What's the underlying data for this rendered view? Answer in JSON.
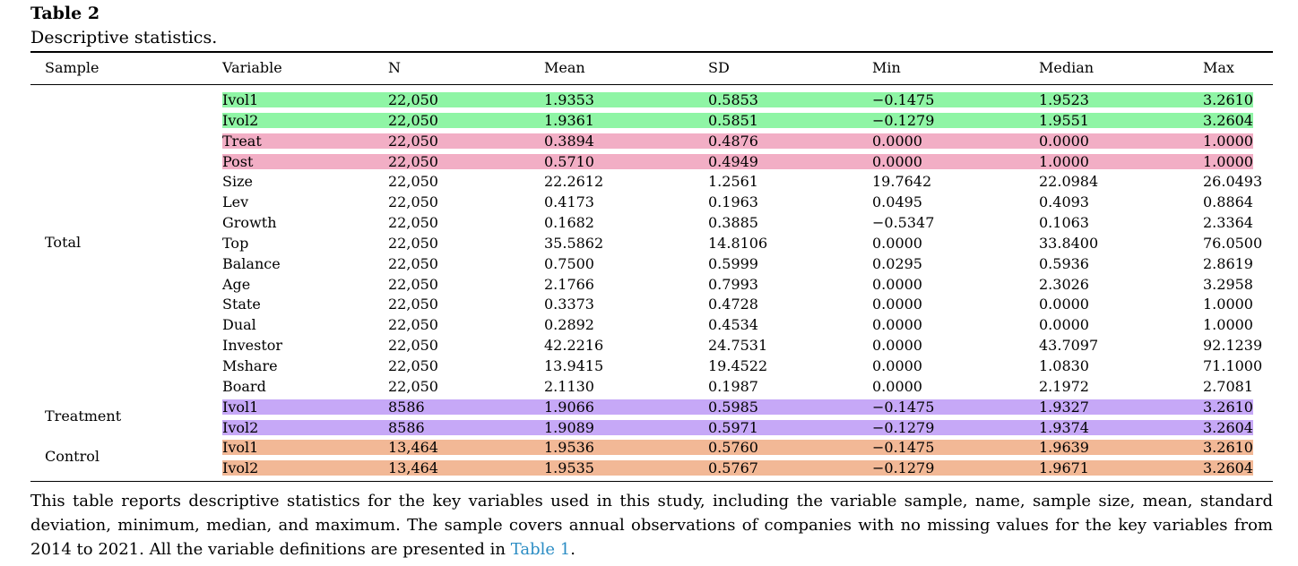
{
  "table": {
    "title": "Table 2",
    "subtitle": "Descriptive statistics.",
    "headers": {
      "sample": "Sample",
      "variable": "Variable",
      "n": "N",
      "mean": "Mean",
      "sd": "SD",
      "min": "Min",
      "median": "Median",
      "max": "Max"
    },
    "groups": {
      "total": "Total",
      "treatment": "Treatment",
      "control": "Control"
    },
    "highlight_colors": {
      "green": "#8ff5a5",
      "pink": "#f2aec5",
      "purple": "#c6a8f7",
      "orange": "#f2b896"
    },
    "rows": [
      {
        "variable": "Ivol1",
        "n": "22,050",
        "mean": "1.9353",
        "sd": "0.5853",
        "min": "−0.1475",
        "median": "1.9523",
        "max": "3.2610",
        "highlight": "green"
      },
      {
        "variable": "Ivol2",
        "n": "22,050",
        "mean": "1.9361",
        "sd": "0.5851",
        "min": "−0.1279",
        "median": "1.9551",
        "max": "3.2604",
        "highlight": "green"
      },
      {
        "variable": "Treat",
        "n": "22,050",
        "mean": "0.3894",
        "sd": "0.4876",
        "min": "0.0000",
        "median": "0.0000",
        "max": "1.0000",
        "highlight": "pink"
      },
      {
        "variable": "Post",
        "n": "22,050",
        "mean": "0.5710",
        "sd": "0.4949",
        "min": "0.0000",
        "median": "1.0000",
        "max": "1.0000",
        "highlight": "pink"
      },
      {
        "variable": "Size",
        "n": "22,050",
        "mean": "22.2612",
        "sd": "1.2561",
        "min": "19.7642",
        "median": "22.0984",
        "max": "26.0493",
        "highlight": ""
      },
      {
        "variable": "Lev",
        "n": "22,050",
        "mean": "0.4173",
        "sd": "0.1963",
        "min": "0.0495",
        "median": "0.4093",
        "max": "0.8864",
        "highlight": ""
      },
      {
        "variable": "Growth",
        "n": "22,050",
        "mean": "0.1682",
        "sd": "0.3885",
        "min": "−0.5347",
        "median": "0.1063",
        "max": "2.3364",
        "highlight": ""
      },
      {
        "variable": "Top",
        "n": "22,050",
        "mean": "35.5862",
        "sd": "14.8106",
        "min": "0.0000",
        "median": "33.8400",
        "max": "76.0500",
        "highlight": ""
      },
      {
        "variable": "Balance",
        "n": "22,050",
        "mean": "0.7500",
        "sd": "0.5999",
        "min": "0.0295",
        "median": "0.5936",
        "max": "2.8619",
        "highlight": ""
      },
      {
        "variable": "Age",
        "n": "22,050",
        "mean": "2.1766",
        "sd": "0.7993",
        "min": "0.0000",
        "median": "2.3026",
        "max": "3.2958",
        "highlight": ""
      },
      {
        "variable": "State",
        "n": "22,050",
        "mean": "0.3373",
        "sd": "0.4728",
        "min": "0.0000",
        "median": "0.0000",
        "max": "1.0000",
        "highlight": ""
      },
      {
        "variable": "Dual",
        "n": "22,050",
        "mean": "0.2892",
        "sd": "0.4534",
        "min": "0.0000",
        "median": "0.0000",
        "max": "1.0000",
        "highlight": ""
      },
      {
        "variable": "Investor",
        "n": "22,050",
        "mean": "42.2216",
        "sd": "24.7531",
        "min": "0.0000",
        "median": "43.7097",
        "max": "92.1239",
        "highlight": ""
      },
      {
        "variable": "Mshare",
        "n": "22,050",
        "mean": "13.9415",
        "sd": "19.4522",
        "min": "0.0000",
        "median": "1.0830",
        "max": "71.1000",
        "highlight": ""
      },
      {
        "variable": "Board",
        "n": "22,050",
        "mean": "2.1130",
        "sd": "0.1987",
        "min": "0.0000",
        "median": "2.1972",
        "max": "2.7081",
        "highlight": ""
      },
      {
        "variable": "Ivol1",
        "n": "8586",
        "mean": "1.9066",
        "sd": "0.5985",
        "min": "−0.1475",
        "median": "1.9327",
        "max": "3.2610",
        "highlight": "purple"
      },
      {
        "variable": "Ivol2",
        "n": "8586",
        "mean": "1.9089",
        "sd": "0.5971",
        "min": "−0.1279",
        "median": "1.9374",
        "max": "3.2604",
        "highlight": "purple"
      },
      {
        "variable": "Ivol1",
        "n": "13,464",
        "mean": "1.9536",
        "sd": "0.5760",
        "min": "−0.1475",
        "median": "1.9639",
        "max": "3.2610",
        "highlight": "orange"
      },
      {
        "variable": "Ivol2",
        "n": "13,464",
        "mean": "1.9535",
        "sd": "0.5767",
        "min": "−0.1279",
        "median": "1.9671",
        "max": "3.2604",
        "highlight": "orange"
      }
    ],
    "note": {
      "text": "This table reports descriptive statistics for the key variables used in this study, including the variable sample, name, sample size, mean, standard deviation, minimum, median, and maximum. The sample covers annual observations of companies with no missing values for the key variables from 2014 to 2021. All the variable definitions are presented in",
      "link": "Table 1",
      "end": "."
    }
  }
}
